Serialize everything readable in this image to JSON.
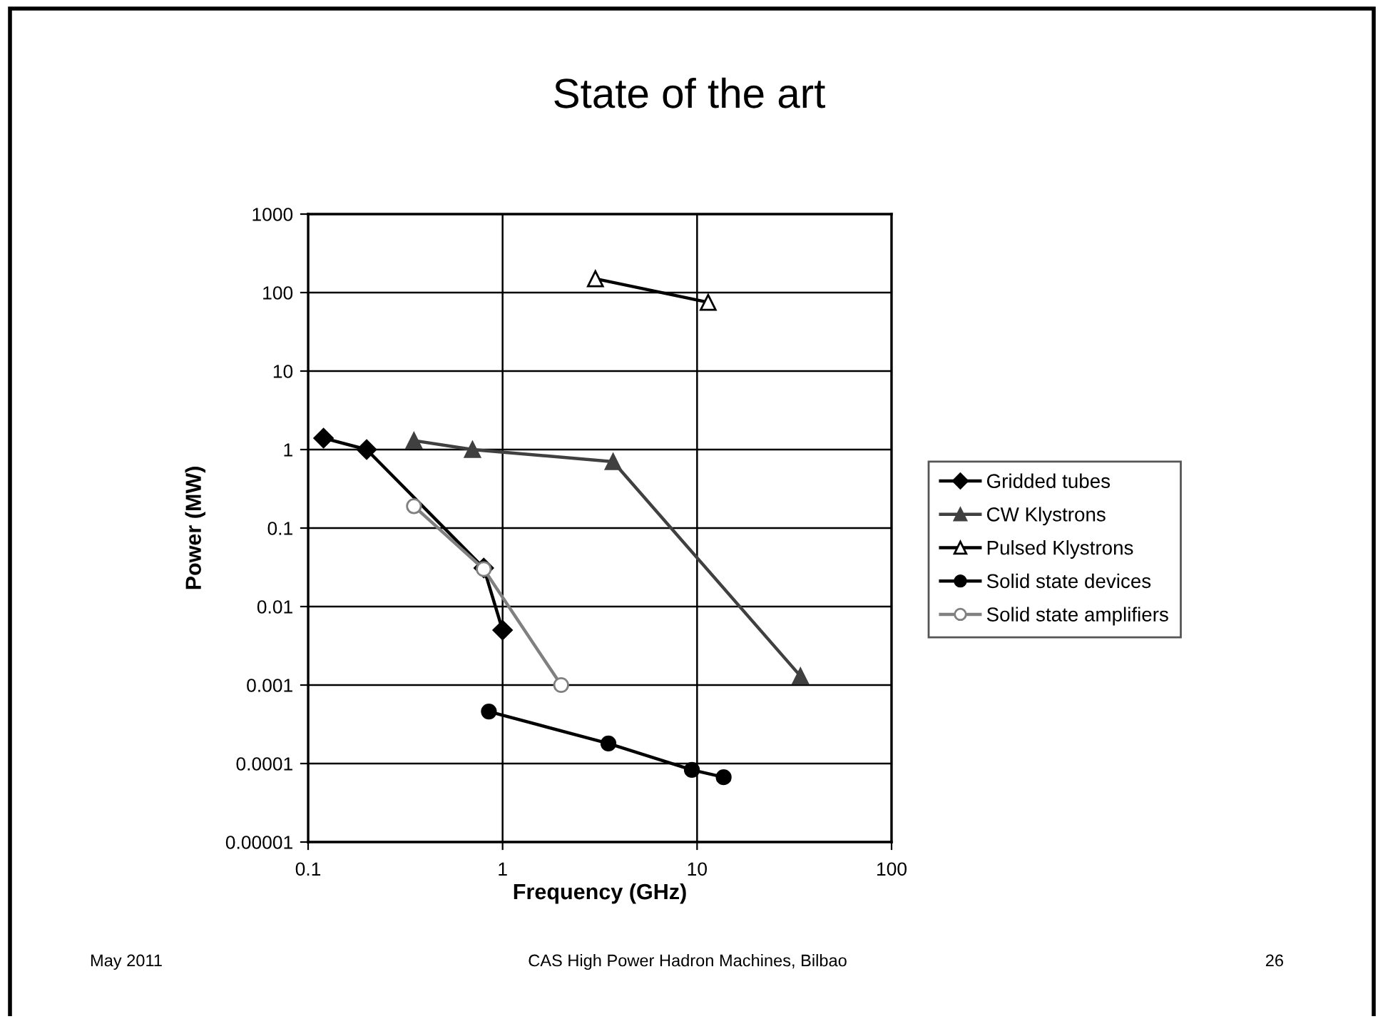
{
  "chart_data": {
    "type": "line",
    "title": "State of the art",
    "xlabel": "Frequency (GHz)",
    "ylabel": "Power (MW)",
    "log": "xy",
    "xlim": [
      0.1,
      100
    ],
    "xticks": [
      0.1,
      1,
      10,
      100
    ],
    "ylim": [
      1e-05,
      1000
    ],
    "yticks": [
      {
        "value": 1e-05,
        "label": "0.00001"
      },
      0.0001,
      0.001,
      0.01,
      0.1,
      1,
      10,
      100,
      1000
    ],
    "grid": true,
    "legend": "right",
    "line_style": "solid",
    "series": [
      {
        "name": "Gridded tubes",
        "color": "#000000",
        "marker": "diamond",
        "x": [
          0.12,
          0.2,
          0.8,
          1
        ],
        "values": [
          1.4,
          1,
          0.031,
          0.005
        ]
      },
      {
        "name": "CW Klystrons",
        "color": "#404040",
        "marker": "triangle",
        "x": [
          0.35,
          0.7,
          3.7,
          34
        ],
        "values": [
          1.3,
          1,
          0.7,
          0.0013
        ]
      },
      {
        "name": "Pulsed Klystrons",
        "color": "#000000",
        "marker": "triangle-open",
        "x": [
          3,
          11.4
        ],
        "values": [
          150,
          75
        ]
      },
      {
        "name": "Solid state devices",
        "color": "#000000",
        "marker": "circle",
        "x": [
          0.85,
          3.5,
          9.4,
          13.7
        ],
        "values": [
          0.00046,
          0.00018,
          8.3e-05,
          6.7e-05
        ]
      },
      {
        "name": "Solid state amplifiers",
        "color": "#808080",
        "marker": "circle-open",
        "x": [
          0.35,
          0.8,
          2
        ],
        "values": [
          0.19,
          0.03,
          0.001
        ]
      }
    ],
    "annotations": [
      "May 2011",
      "CAS High Power Hadron Machines, Bilbao",
      "26"
    ]
  }
}
